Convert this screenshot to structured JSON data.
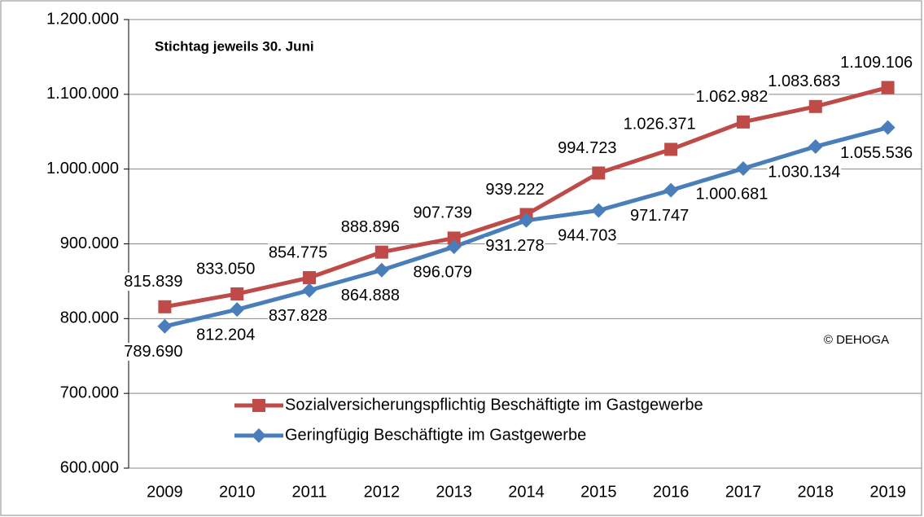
{
  "chart_data": {
    "type": "line",
    "annotations": [
      "Stichtag jeweils 30. Juni",
      "© DEHOGA"
    ],
    "categories": [
      "2009",
      "2010",
      "2011",
      "2012",
      "2013",
      "2014",
      "2015",
      "2016",
      "2017",
      "2018",
      "2019"
    ],
    "series": [
      {
        "name": "Sozialversicherungspflichtig Beschäftigte im Gastgewerbe",
        "color": "#be4b48",
        "marker": "square",
        "values": [
          815839,
          833050,
          854775,
          888896,
          907739,
          939222,
          994723,
          1026371,
          1062982,
          1083683,
          1109106
        ],
        "value_labels": [
          "815.839",
          "833.050",
          "854.775",
          "888.896",
          "907.739",
          "939.222",
          "994.723",
          "1.026.371",
          "1.062.982",
          "1.083.683",
          "1.109.106"
        ]
      },
      {
        "name": "Geringfügig Beschäftigte im Gastgewerbe",
        "color": "#4a7ebb",
        "marker": "diamond",
        "values": [
          789690,
          812204,
          837828,
          864888,
          896079,
          931278,
          944703,
          971747,
          1000681,
          1030134,
          1055536
        ],
        "value_labels": [
          "789.690",
          "812.204",
          "837.828",
          "864.888",
          "896.079",
          "931.278",
          "944.703",
          "971.747",
          "1.000.681",
          "1.030.134",
          "1.055.536"
        ]
      }
    ],
    "ylim": [
      600000,
      1200000
    ],
    "yticks": [
      {
        "value": 600000,
        "label": "600.000"
      },
      {
        "value": 700000,
        "label": "700.000"
      },
      {
        "value": 800000,
        "label": "800.000"
      },
      {
        "value": 900000,
        "label": "900.000"
      },
      {
        "value": 1000000,
        "label": "1.000.000"
      },
      {
        "value": 1100000,
        "label": "1.100.000"
      },
      {
        "value": 1200000,
        "label": "1.200.000"
      }
    ],
    "grid": true,
    "legend": "lower-left"
  }
}
